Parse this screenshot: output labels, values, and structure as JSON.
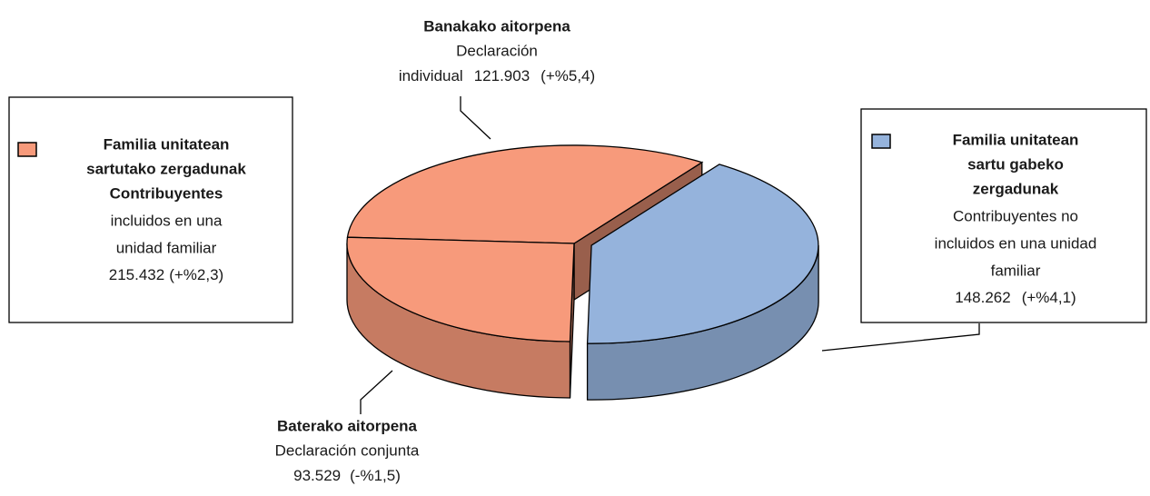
{
  "chart_data": {
    "type": "pie3d",
    "categories": [
      "Banakako aitorpena",
      null,
      "Baterako aitorpena"
    ],
    "sublabels": [
      [
        "Declaración",
        "individual"
      ],
      null,
      [
        "Declaración conjunta"
      ]
    ],
    "values": [
      121903,
      148262,
      93529
    ],
    "value_labels": [
      "121.903",
      "148.262",
      "93.529"
    ],
    "change_labels": [
      "(+%5,4)",
      "(+%4,1)",
      "(-%1,5)"
    ],
    "colors": [
      "#F79A7B",
      "#95B3DC",
      "#F79A7B"
    ],
    "exploded": [
      false,
      true,
      false
    ],
    "legend": [
      {
        "bold": [
          "Familia unitatean",
          "sartutako zergadunak",
          "Contribuyentes"
        ],
        "lines": [
          "incluidos en una",
          "unidad familiar"
        ],
        "value_label": "215.432",
        "change_label": "(+%2,3)"
      },
      {
        "bold": [
          "Familia unitatean",
          "sartu gabeko",
          "zergadunak"
        ],
        "lines": [
          "Contribuyentes no",
          "incluidos en una unidad",
          "familiar"
        ]
      }
    ]
  }
}
